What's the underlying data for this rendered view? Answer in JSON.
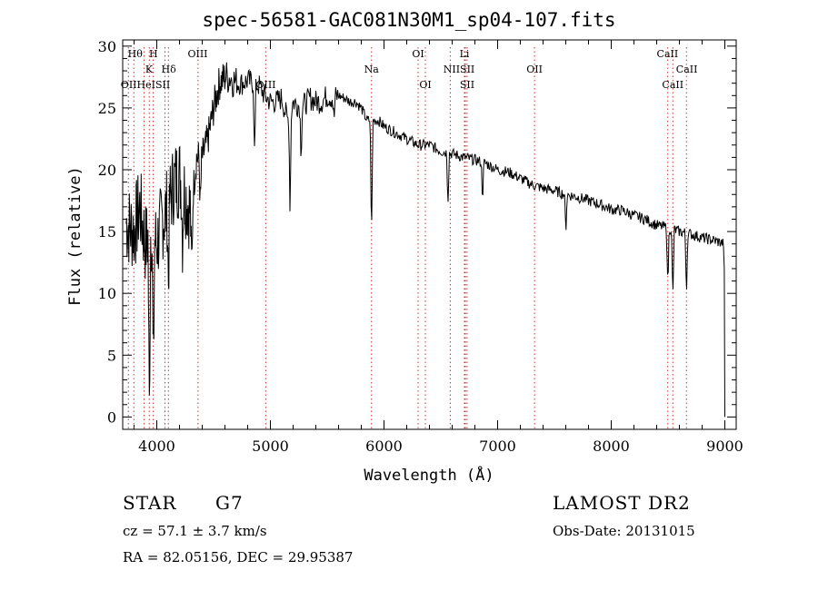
{
  "chart_data": {
    "type": "line",
    "title": "spec-56581-GAC081N30M1_sp04-107.fits",
    "xlabel": "Wavelength (Å)",
    "ylabel": "Flux (relative)",
    "xlim": [
      3700,
      9100
    ],
    "ylim": [
      -1,
      30.5
    ],
    "xticks": [
      4000,
      5000,
      6000,
      7000,
      8000,
      9000
    ],
    "yticks": [
      0,
      5,
      10,
      15,
      20,
      25,
      30
    ],
    "grid": false,
    "series": [
      {
        "x": [
          3700,
          3800,
          3850,
          3900,
          3950,
          4000,
          4050,
          4100,
          4150,
          4200,
          4250,
          4300,
          4350,
          4400,
          4450,
          4500,
          4550,
          4600,
          4650,
          4700,
          4750,
          4800,
          4850,
          4900,
          4950,
          5000,
          5050,
          5100,
          5150,
          5200,
          5250,
          5300,
          5350,
          5400,
          5450,
          5500,
          5550,
          5600,
          5650,
          5700,
          5750,
          5800,
          5850,
          5900,
          5950,
          6000,
          6100,
          6200,
          6300,
          6400,
          6500,
          6600,
          6700,
          6800,
          6900,
          7000,
          7100,
          7200,
          7300,
          7400,
          7500,
          7600,
          7700,
          7800,
          7900,
          8000,
          8100,
          8200,
          8300,
          8400,
          8500,
          8600,
          8700,
          8800,
          8900,
          9000
        ],
        "y": [
          16,
          15,
          17,
          14,
          15,
          14,
          16,
          17,
          19,
          19.5,
          18,
          16.5,
          21,
          21,
          22.5,
          25,
          27,
          27.5,
          27.5,
          27,
          27,
          27.2,
          27,
          26.8,
          26,
          25.5,
          25.5,
          25.8,
          24,
          25.5,
          25.2,
          25.3,
          25.8,
          25.5,
          25.5,
          26,
          25.8,
          26,
          25.8,
          25.5,
          25.5,
          25,
          24,
          24,
          24,
          23.5,
          23,
          22.5,
          22,
          22,
          21.5,
          21.3,
          21,
          20.8,
          20.5,
          20,
          19.8,
          19.3,
          18.8,
          18.5,
          18.3,
          18,
          17.8,
          17.5,
          17.2,
          16.8,
          16.7,
          16.3,
          16,
          15.5,
          15.3,
          15,
          14.8,
          14.5,
          14.3,
          14
        ]
      }
    ],
    "lines": [
      {
        "wavelength": 3750,
        "label": "OII"
      },
      {
        "wavelength": 3798,
        "label": "Hθ"
      },
      {
        "wavelength": 3889,
        "label": "HeI"
      },
      {
        "wavelength": 3934,
        "label": "K"
      },
      {
        "wavelength": 3969,
        "label": "H"
      },
      {
        "wavelength": 4072,
        "label": "SII"
      },
      {
        "wavelength": 4102,
        "label": "Hδ"
      },
      {
        "wavelength": 4363,
        "label": "OIII"
      },
      {
        "wavelength": 4959,
        "label": "OIII"
      },
      {
        "wavelength": 5890,
        "label": "Na"
      },
      {
        "wavelength": 6300,
        "label": "OI"
      },
      {
        "wavelength": 6364,
        "label": "OI"
      },
      {
        "wavelength": 6583,
        "label": "NII"
      },
      {
        "wavelength": 6708,
        "label": "Li"
      },
      {
        "wavelength": 6716,
        "label": "SII"
      },
      {
        "wavelength": 6731,
        "label": "SII"
      },
      {
        "wavelength": 7325,
        "label": "OII"
      },
      {
        "wavelength": 8498,
        "label": "CaII"
      },
      {
        "wavelength": 8542,
        "label": "CaII"
      },
      {
        "wavelength": 8662,
        "label": "CaII"
      }
    ],
    "line_labels": [
      {
        "text": "Hθ",
        "wavelength": 3810,
        "row": 1
      },
      {
        "text": "H",
        "wavelength": 3970,
        "row": 1
      },
      {
        "text": "OIII",
        "wavelength": 4360,
        "row": 1
      },
      {
        "text": "OI",
        "wavelength": 6300,
        "row": 1
      },
      {
        "text": "Li",
        "wavelength": 6708,
        "row": 1
      },
      {
        "text": "CaII",
        "wavelength": 8495,
        "row": 1
      },
      {
        "text": "K",
        "wavelength": 3932,
        "row": 2
      },
      {
        "text": "Hδ",
        "wavelength": 4105,
        "row": 2
      },
      {
        "text": "Na",
        "wavelength": 5890,
        "row": 2
      },
      {
        "text": "NIISII",
        "wavelength": 6660,
        "row": 2
      },
      {
        "text": "OII",
        "wavelength": 7325,
        "row": 2
      },
      {
        "text": "CaII",
        "wavelength": 8665,
        "row": 2
      },
      {
        "text": "OIIHeISII",
        "wavelength": 3900,
        "row": 3
      },
      {
        "text": "OIII",
        "wavelength": 4960,
        "row": 3
      },
      {
        "text": "OI",
        "wavelength": 6364,
        "row": 3
      },
      {
        "text": "SII",
        "wavelength": 6732,
        "row": 3
      },
      {
        "text": "CaII",
        "wavelength": 8542,
        "row": 3
      }
    ]
  },
  "info": {
    "class_label": "STAR",
    "subclass": "G7",
    "survey": "LAMOST DR2",
    "cz": "cz = 57.1 ± 3.7 km/s",
    "obs_date": "Obs-Date: 20131015",
    "coords": "RA =  82.05156, DEC =  29.95387"
  },
  "colors": {
    "spectrum": "#000000",
    "line_markers": "#cc3333"
  }
}
